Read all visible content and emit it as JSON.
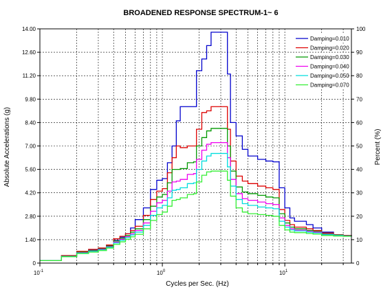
{
  "chart_data": {
    "type": "line",
    "title": "BROADENED RESPONSE SPECTRUM-1~ 6",
    "xlabel": "Cycles per Sec. (Hz)",
    "ylabel": "Absolute Accelerations (g)",
    "y2label": "Percent (%)",
    "xscale": "log",
    "xlim": [
      0.1,
      35
    ],
    "ylim": [
      0,
      14
    ],
    "y2lim": [
      0,
      100
    ],
    "x_ticks": [
      {
        "value": 0.1,
        "base": "10",
        "exp": "-1"
      },
      {
        "value": 1,
        "base": "10",
        "exp": "0"
      },
      {
        "value": 10,
        "base": "10",
        "exp": "1"
      }
    ],
    "y_ticks": [
      "0",
      "1.40",
      "2.80",
      "4.20",
      "5.60",
      "7.00",
      "8.40",
      "9.80",
      "11.20",
      "12.60",
      "14.00"
    ],
    "y2_ticks": [
      "0",
      "10",
      "20",
      "30",
      "40",
      "50",
      "60",
      "70",
      "80",
      "90",
      "100"
    ],
    "grid": true,
    "legend_position": "top-right",
    "series": [
      {
        "name": "Damping=0.010",
        "color": "#0000cc",
        "points": [
          [
            0.1,
            0.15
          ],
          [
            0.15,
            0.42
          ],
          [
            0.2,
            0.68
          ],
          [
            0.25,
            0.8
          ],
          [
            0.3,
            0.88
          ],
          [
            0.35,
            1.08
          ],
          [
            0.4,
            1.35
          ],
          [
            0.45,
            1.55
          ],
          [
            0.5,
            1.75
          ],
          [
            0.55,
            2.1
          ],
          [
            0.6,
            2.6
          ],
          [
            0.7,
            3.3
          ],
          [
            0.8,
            4.4
          ],
          [
            0.9,
            4.95
          ],
          [
            1.0,
            5.05
          ],
          [
            1.1,
            6.0
          ],
          [
            1.2,
            7.0
          ],
          [
            1.3,
            8.5
          ],
          [
            1.4,
            9.35
          ],
          [
            1.6,
            9.35
          ],
          [
            1.8,
            9.35
          ],
          [
            1.9,
            11.5
          ],
          [
            2.1,
            12.2
          ],
          [
            2.3,
            13.0
          ],
          [
            2.5,
            13.8
          ],
          [
            3.2,
            13.8
          ],
          [
            3.4,
            11.3
          ],
          [
            3.6,
            8.4
          ],
          [
            4.0,
            7.6
          ],
          [
            4.5,
            6.8
          ],
          [
            5.0,
            6.4
          ],
          [
            6.0,
            6.2
          ],
          [
            7.0,
            6.1
          ],
          [
            8.0,
            6.05
          ],
          [
            9.0,
            4.5
          ],
          [
            10.0,
            3.3
          ],
          [
            11.0,
            2.7
          ],
          [
            12.0,
            2.5
          ],
          [
            15.0,
            2.3
          ],
          [
            17.0,
            2.1
          ],
          [
            20.0,
            1.85
          ],
          [
            25.0,
            1.7
          ],
          [
            30.0,
            1.65
          ],
          [
            35.0,
            1.6
          ]
        ]
      },
      {
        "name": "Damping=0.020",
        "color": "#dd0000",
        "points": [
          [
            0.1,
            0.15
          ],
          [
            0.15,
            0.45
          ],
          [
            0.2,
            0.7
          ],
          [
            0.25,
            0.82
          ],
          [
            0.3,
            0.9
          ],
          [
            0.35,
            1.08
          ],
          [
            0.4,
            1.45
          ],
          [
            0.45,
            1.6
          ],
          [
            0.5,
            1.75
          ],
          [
            0.55,
            1.95
          ],
          [
            0.6,
            2.2
          ],
          [
            0.7,
            2.85
          ],
          [
            0.8,
            3.8
          ],
          [
            0.9,
            4.3
          ],
          [
            1.0,
            4.45
          ],
          [
            1.1,
            5.4
          ],
          [
            1.2,
            6.3
          ],
          [
            1.3,
            7.0
          ],
          [
            1.4,
            6.9
          ],
          [
            1.6,
            7.0
          ],
          [
            1.8,
            7.0
          ],
          [
            1.9,
            8.0
          ],
          [
            2.1,
            9.0
          ],
          [
            2.3,
            9.1
          ],
          [
            2.5,
            9.35
          ],
          [
            3.2,
            9.35
          ],
          [
            3.4,
            8.0
          ],
          [
            3.6,
            6.1
          ],
          [
            4.0,
            5.2
          ],
          [
            4.5,
            4.9
          ],
          [
            5.0,
            4.75
          ],
          [
            6.0,
            4.6
          ],
          [
            7.0,
            4.5
          ],
          [
            8.0,
            4.4
          ],
          [
            9.0,
            3.2
          ],
          [
            10.0,
            2.55
          ],
          [
            11.0,
            2.3
          ],
          [
            12.0,
            2.15
          ],
          [
            15.0,
            2.05
          ],
          [
            17.0,
            1.95
          ],
          [
            20.0,
            1.8
          ],
          [
            25.0,
            1.7
          ],
          [
            30.0,
            1.65
          ],
          [
            35.0,
            1.6
          ]
        ]
      },
      {
        "name": "Damping=0.030",
        "color": "#009900",
        "points": [
          [
            0.1,
            0.15
          ],
          [
            0.15,
            0.42
          ],
          [
            0.2,
            0.65
          ],
          [
            0.25,
            0.76
          ],
          [
            0.3,
            0.85
          ],
          [
            0.35,
            1.02
          ],
          [
            0.4,
            1.32
          ],
          [
            0.45,
            1.48
          ],
          [
            0.5,
            1.65
          ],
          [
            0.55,
            1.85
          ],
          [
            0.6,
            2.05
          ],
          [
            0.7,
            2.6
          ],
          [
            0.8,
            3.4
          ],
          [
            0.9,
            3.95
          ],
          [
            1.0,
            4.1
          ],
          [
            1.1,
            4.8
          ],
          [
            1.2,
            5.6
          ],
          [
            1.3,
            5.6
          ],
          [
            1.4,
            5.65
          ],
          [
            1.6,
            6.0
          ],
          [
            1.8,
            6.05
          ],
          [
            1.9,
            7.0
          ],
          [
            2.1,
            7.5
          ],
          [
            2.3,
            7.9
          ],
          [
            2.5,
            8.05
          ],
          [
            3.2,
            8.05
          ],
          [
            3.4,
            7.0
          ],
          [
            3.6,
            5.5
          ],
          [
            4.0,
            4.55
          ],
          [
            4.5,
            4.25
          ],
          [
            5.0,
            4.15
          ],
          [
            6.0,
            4.05
          ],
          [
            7.0,
            3.95
          ],
          [
            8.0,
            3.9
          ],
          [
            9.0,
            2.95
          ],
          [
            10.0,
            2.4
          ],
          [
            11.0,
            2.15
          ],
          [
            12.0,
            2.05
          ],
          [
            15.0,
            1.95
          ],
          [
            17.0,
            1.9
          ],
          [
            20.0,
            1.75
          ],
          [
            25.0,
            1.68
          ],
          [
            30.0,
            1.63
          ],
          [
            35.0,
            1.6
          ]
        ]
      },
      {
        "name": "Damping=0.040",
        "color": "#ee00ee",
        "points": [
          [
            0.1,
            0.15
          ],
          [
            0.15,
            0.4
          ],
          [
            0.2,
            0.62
          ],
          [
            0.25,
            0.72
          ],
          [
            0.3,
            0.82
          ],
          [
            0.35,
            0.98
          ],
          [
            0.4,
            1.25
          ],
          [
            0.45,
            1.42
          ],
          [
            0.5,
            1.58
          ],
          [
            0.55,
            1.75
          ],
          [
            0.6,
            1.95
          ],
          [
            0.7,
            2.4
          ],
          [
            0.8,
            3.1
          ],
          [
            0.9,
            3.6
          ],
          [
            1.0,
            3.75
          ],
          [
            1.1,
            4.3
          ],
          [
            1.2,
            4.85
          ],
          [
            1.3,
            4.9
          ],
          [
            1.4,
            5.0
          ],
          [
            1.6,
            5.3
          ],
          [
            1.8,
            5.35
          ],
          [
            1.9,
            6.2
          ],
          [
            2.1,
            6.75
          ],
          [
            2.3,
            7.1
          ],
          [
            2.5,
            7.2
          ],
          [
            3.2,
            7.2
          ],
          [
            3.4,
            6.3
          ],
          [
            3.6,
            5.0
          ],
          [
            4.0,
            4.15
          ],
          [
            4.5,
            3.85
          ],
          [
            5.0,
            3.75
          ],
          [
            6.0,
            3.65
          ],
          [
            7.0,
            3.55
          ],
          [
            8.0,
            3.5
          ],
          [
            9.0,
            2.7
          ],
          [
            10.0,
            2.25
          ],
          [
            11.0,
            2.05
          ],
          [
            12.0,
            1.97
          ],
          [
            15.0,
            1.9
          ],
          [
            17.0,
            1.85
          ],
          [
            20.0,
            1.72
          ],
          [
            25.0,
            1.66
          ],
          [
            30.0,
            1.62
          ],
          [
            35.0,
            1.6
          ]
        ]
      },
      {
        "name": "Damping=0.050",
        "color": "#00dddd",
        "points": [
          [
            0.1,
            0.15
          ],
          [
            0.15,
            0.39
          ],
          [
            0.2,
            0.6
          ],
          [
            0.25,
            0.7
          ],
          [
            0.3,
            0.79
          ],
          [
            0.35,
            0.95
          ],
          [
            0.4,
            1.2
          ],
          [
            0.45,
            1.36
          ],
          [
            0.5,
            1.52
          ],
          [
            0.55,
            1.68
          ],
          [
            0.6,
            1.85
          ],
          [
            0.7,
            2.25
          ],
          [
            0.8,
            2.85
          ],
          [
            0.9,
            3.3
          ],
          [
            1.0,
            3.45
          ],
          [
            1.1,
            3.9
          ],
          [
            1.2,
            4.35
          ],
          [
            1.3,
            4.4
          ],
          [
            1.4,
            4.5
          ],
          [
            1.6,
            4.75
          ],
          [
            1.8,
            4.8
          ],
          [
            1.9,
            5.6
          ],
          [
            2.1,
            6.1
          ],
          [
            2.3,
            6.4
          ],
          [
            2.5,
            6.55
          ],
          [
            3.2,
            6.55
          ],
          [
            3.4,
            5.75
          ],
          [
            3.6,
            4.6
          ],
          [
            4.0,
            3.8
          ],
          [
            4.5,
            3.55
          ],
          [
            5.0,
            3.45
          ],
          [
            6.0,
            3.35
          ],
          [
            7.0,
            3.3
          ],
          [
            8.0,
            3.25
          ],
          [
            9.0,
            2.5
          ],
          [
            10.0,
            2.15
          ],
          [
            11.0,
            1.98
          ],
          [
            12.0,
            1.92
          ],
          [
            15.0,
            1.85
          ],
          [
            17.0,
            1.8
          ],
          [
            20.0,
            1.7
          ],
          [
            25.0,
            1.65
          ],
          [
            30.0,
            1.61
          ],
          [
            35.0,
            1.6
          ]
        ]
      },
      {
        "name": "Damping=0.070",
        "color": "#33ee33",
        "points": [
          [
            0.1,
            0.15
          ],
          [
            0.15,
            0.38
          ],
          [
            0.2,
            0.57
          ],
          [
            0.25,
            0.66
          ],
          [
            0.3,
            0.75
          ],
          [
            0.35,
            0.9
          ],
          [
            0.4,
            1.12
          ],
          [
            0.45,
            1.27
          ],
          [
            0.5,
            1.42
          ],
          [
            0.55,
            1.57
          ],
          [
            0.6,
            1.72
          ],
          [
            0.7,
            2.05
          ],
          [
            0.8,
            2.55
          ],
          [
            0.9,
            2.9
          ],
          [
            1.0,
            3.05
          ],
          [
            1.1,
            3.4
          ],
          [
            1.2,
            3.75
          ],
          [
            1.3,
            3.8
          ],
          [
            1.4,
            3.9
          ],
          [
            1.6,
            4.1
          ],
          [
            1.8,
            4.15
          ],
          [
            1.9,
            4.85
          ],
          [
            2.1,
            5.25
          ],
          [
            2.3,
            5.45
          ],
          [
            2.5,
            5.5
          ],
          [
            3.2,
            5.5
          ],
          [
            3.4,
            4.95
          ],
          [
            3.6,
            4.0
          ],
          [
            4.0,
            3.3
          ],
          [
            4.5,
            3.05
          ],
          [
            5.0,
            2.95
          ],
          [
            6.0,
            2.9
          ],
          [
            7.0,
            2.85
          ],
          [
            8.0,
            2.8
          ],
          [
            9.0,
            2.25
          ],
          [
            10.0,
            1.98
          ],
          [
            11.0,
            1.85
          ],
          [
            12.0,
            1.82
          ],
          [
            15.0,
            1.77
          ],
          [
            17.0,
            1.73
          ],
          [
            20.0,
            1.65
          ],
          [
            25.0,
            1.62
          ],
          [
            30.0,
            1.6
          ],
          [
            35.0,
            1.58
          ]
        ]
      }
    ]
  }
}
